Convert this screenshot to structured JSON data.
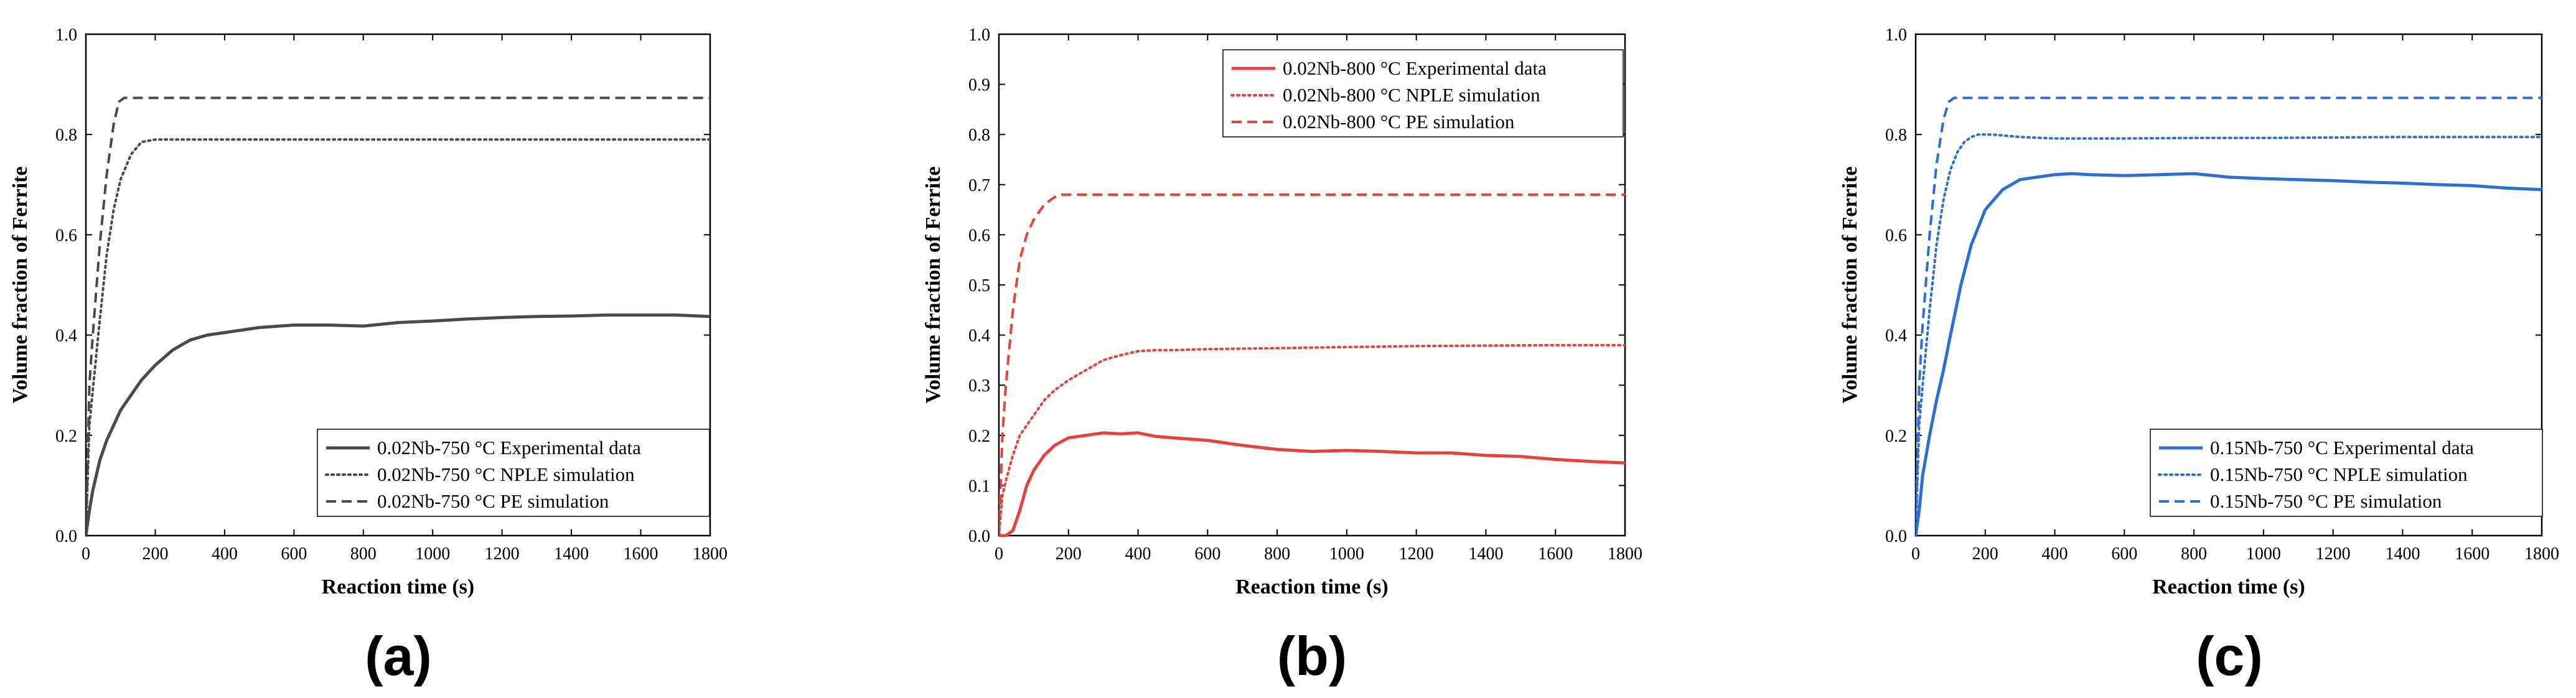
{
  "chart_data": [
    {
      "type": "line",
      "panel_label": "(a)",
      "xlabel": "Reaction time (s)",
      "ylabel": "Volume fraction of Ferrite",
      "xlim": [
        0,
        1800
      ],
      "ylim": [
        0,
        1.0
      ],
      "xticks": [
        0,
        200,
        400,
        600,
        800,
        1000,
        1200,
        1400,
        1600,
        1800
      ],
      "yticks": [
        0.0,
        0.2,
        0.4,
        0.6,
        0.8,
        1.0
      ],
      "legend_position": "bottom-right",
      "series": [
        {
          "name": "0.02Nb-750 °C Experimental data",
          "style": "solid",
          "color": "#4a4a4a",
          "x": [
            0,
            10,
            20,
            40,
            60,
            80,
            100,
            130,
            160,
            200,
            250,
            300,
            350,
            400,
            500,
            600,
            700,
            800,
            900,
            1000,
            1100,
            1200,
            1300,
            1400,
            1500,
            1600,
            1700,
            1800
          ],
          "y": [
            0.0,
            0.05,
            0.09,
            0.15,
            0.19,
            0.22,
            0.25,
            0.28,
            0.31,
            0.34,
            0.37,
            0.39,
            0.4,
            0.405,
            0.415,
            0.42,
            0.42,
            0.418,
            0.425,
            0.428,
            0.432,
            0.435,
            0.437,
            0.438,
            0.44,
            0.44,
            0.44,
            0.437
          ]
        },
        {
          "name": "0.02Nb-750 °C NPLE simulation",
          "style": "dotted",
          "color": "#4a4a4a",
          "x": [
            0,
            10,
            20,
            40,
            60,
            80,
            100,
            130,
            160,
            200,
            250,
            300,
            400,
            600,
            800,
            1000,
            1200,
            1400,
            1600,
            1800
          ],
          "y": [
            0.0,
            0.22,
            0.29,
            0.43,
            0.56,
            0.65,
            0.71,
            0.76,
            0.785,
            0.79,
            0.79,
            0.79,
            0.79,
            0.79,
            0.79,
            0.79,
            0.79,
            0.79,
            0.79,
            0.79
          ]
        },
        {
          "name": "0.02Nb-750 °C PE simulation",
          "style": "dashed",
          "color": "#4a4a4a",
          "x": [
            0,
            10,
            20,
            40,
            60,
            80,
            95,
            110,
            150,
            200,
            400,
            600,
            800,
            1000,
            1200,
            1400,
            1600,
            1800
          ],
          "y": [
            0.0,
            0.3,
            0.4,
            0.58,
            0.72,
            0.82,
            0.865,
            0.873,
            0.873,
            0.873,
            0.873,
            0.873,
            0.873,
            0.873,
            0.873,
            0.873,
            0.873,
            0.873
          ]
        }
      ]
    },
    {
      "type": "line",
      "panel_label": "(b)",
      "xlabel": "Reaction time (s)",
      "ylabel": "Volume fraction of Ferrite",
      "xlim": [
        0,
        1800
      ],
      "ylim": [
        0,
        1.0
      ],
      "xticks": [
        0,
        200,
        400,
        600,
        800,
        1000,
        1200,
        1400,
        1600,
        1800
      ],
      "yticks": [
        0.0,
        0.1,
        0.2,
        0.3,
        0.4,
        0.5,
        0.6,
        0.7,
        0.8,
        0.9,
        1.0
      ],
      "legend_position": "top-right",
      "series": [
        {
          "name": "0.02Nb-800 °C Experimental data",
          "style": "solid",
          "color": "#e8413c",
          "x": [
            0,
            20,
            40,
            60,
            80,
            100,
            130,
            160,
            200,
            250,
            300,
            350,
            400,
            450,
            500,
            600,
            700,
            800,
            900,
            1000,
            1100,
            1200,
            1300,
            1400,
            1500,
            1600,
            1700,
            1800
          ],
          "y": [
            0.0,
            0.0,
            0.01,
            0.05,
            0.1,
            0.13,
            0.16,
            0.18,
            0.195,
            0.2,
            0.205,
            0.203,
            0.205,
            0.198,
            0.195,
            0.19,
            0.18,
            0.172,
            0.168,
            0.17,
            0.168,
            0.165,
            0.165,
            0.16,
            0.158,
            0.152,
            0.148,
            0.145
          ]
        },
        {
          "name": "0.02Nb-800 °C NPLE simulation",
          "style": "dotted",
          "color": "#e8413c",
          "x": [
            0,
            10,
            20,
            40,
            60,
            80,
            100,
            130,
            160,
            200,
            250,
            300,
            350,
            400,
            450,
            500,
            600,
            800,
            1000,
            1200,
            1400,
            1600,
            1800
          ],
          "y": [
            0.0,
            0.08,
            0.11,
            0.16,
            0.2,
            0.22,
            0.24,
            0.27,
            0.29,
            0.31,
            0.33,
            0.35,
            0.36,
            0.368,
            0.37,
            0.37,
            0.372,
            0.374,
            0.376,
            0.378,
            0.379,
            0.38,
            0.38
          ]
        },
        {
          "name": "0.02Nb-800 °C PE simulation",
          "style": "dashed",
          "color": "#e8413c",
          "x": [
            0,
            10,
            20,
            40,
            60,
            80,
            100,
            130,
            160,
            180,
            200,
            400,
            600,
            800,
            1000,
            1200,
            1400,
            1600,
            1800
          ],
          "y": [
            0.0,
            0.2,
            0.3,
            0.45,
            0.55,
            0.6,
            0.63,
            0.66,
            0.675,
            0.68,
            0.68,
            0.68,
            0.68,
            0.68,
            0.68,
            0.68,
            0.68,
            0.68,
            0.68
          ]
        }
      ]
    },
    {
      "type": "line",
      "panel_label": "(c)",
      "xlabel": "Reaction time (s)",
      "ylabel": "Volume fraction of Ferrite",
      "xlim": [
        0,
        1800
      ],
      "ylim": [
        0,
        1.0
      ],
      "xticks": [
        0,
        200,
        400,
        600,
        800,
        1000,
        1200,
        1400,
        1600,
        1800
      ],
      "yticks": [
        0.0,
        0.2,
        0.4,
        0.6,
        0.8,
        1.0
      ],
      "legend_position": "bottom-right",
      "series": [
        {
          "name": "0.15Nb-750 °C Experimental data",
          "style": "solid",
          "color": "#2b6fd6",
          "x": [
            0,
            10,
            20,
            40,
            60,
            80,
            100,
            130,
            160,
            200,
            250,
            300,
            350,
            400,
            450,
            500,
            600,
            700,
            800,
            900,
            1000,
            1100,
            1200,
            1300,
            1400,
            1500,
            1600,
            1700,
            1800
          ],
          "y": [
            0.0,
            0.05,
            0.12,
            0.2,
            0.27,
            0.33,
            0.4,
            0.5,
            0.58,
            0.65,
            0.69,
            0.71,
            0.715,
            0.72,
            0.722,
            0.72,
            0.718,
            0.72,
            0.722,
            0.715,
            0.712,
            0.71,
            0.708,
            0.705,
            0.703,
            0.7,
            0.698,
            0.693,
            0.69
          ]
        },
        {
          "name": "0.15Nb-750 °C NPLE simulation",
          "style": "dotted",
          "color": "#2b6fd6",
          "x": [
            0,
            10,
            20,
            40,
            60,
            80,
            100,
            120,
            140,
            160,
            180,
            220,
            300,
            400,
            600,
            800,
            1000,
            1200,
            1400,
            1600,
            1800
          ],
          "y": [
            0.0,
            0.22,
            0.3,
            0.45,
            0.58,
            0.67,
            0.73,
            0.765,
            0.785,
            0.795,
            0.8,
            0.8,
            0.795,
            0.792,
            0.792,
            0.793,
            0.793,
            0.794,
            0.795,
            0.795,
            0.795
          ]
        },
        {
          "name": "0.15Nb-750 °C PE simulation",
          "style": "dashed",
          "color": "#2b6fd6",
          "x": [
            0,
            10,
            20,
            40,
            60,
            80,
            95,
            110,
            150,
            200,
            400,
            600,
            800,
            1000,
            1200,
            1400,
            1600,
            1800
          ],
          "y": [
            0.0,
            0.3,
            0.42,
            0.6,
            0.74,
            0.83,
            0.865,
            0.873,
            0.873,
            0.873,
            0.873,
            0.873,
            0.873,
            0.873,
            0.873,
            0.873,
            0.873,
            0.873
          ]
        }
      ]
    }
  ]
}
